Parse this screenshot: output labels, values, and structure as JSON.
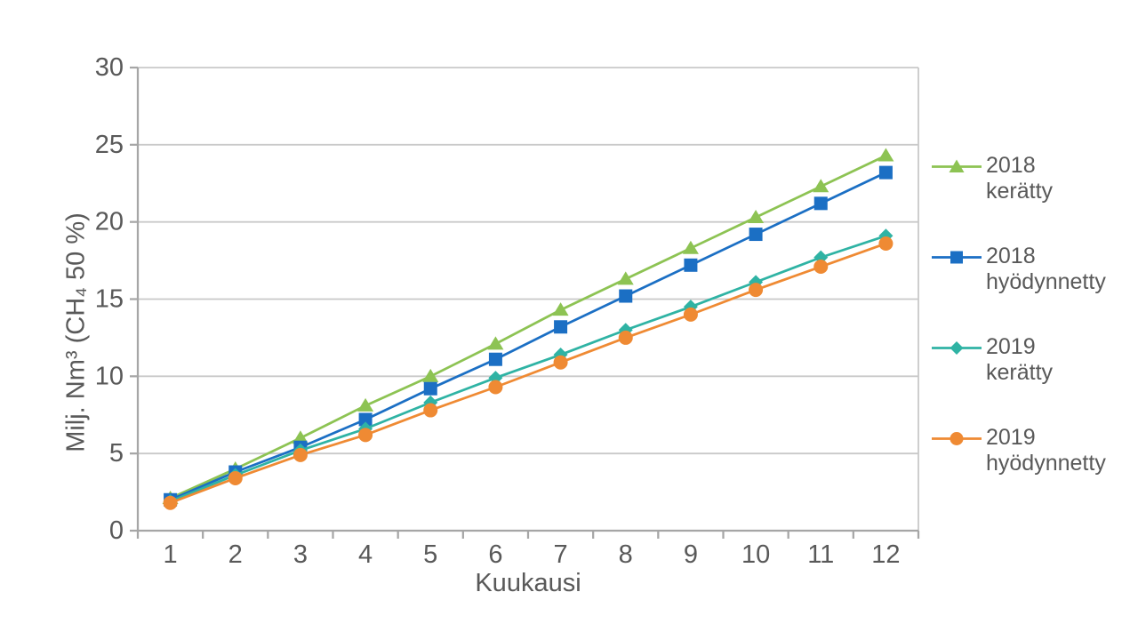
{
  "page": {
    "background": "#FFFFFF"
  },
  "chart_data": {
    "type": "line",
    "title": "",
    "xlabel": "Kuukausi",
    "ylabel": "Milj. Nm³ (CH₄ 50 %)",
    "categories": [
      "1",
      "2",
      "3",
      "4",
      "5",
      "6",
      "7",
      "8",
      "9",
      "10",
      "11",
      "12"
    ],
    "ylim": [
      0,
      30
    ],
    "ytick_interval": 5,
    "ytick_labels": [
      "0",
      "5",
      "10",
      "15",
      "20",
      "25",
      "30"
    ],
    "grid": "horizontal",
    "legend_position": "right",
    "axis_colors": {
      "text": "#595959",
      "gridline": "#C9C9C9",
      "axis_line": "#A6A6A6"
    },
    "series": [
      {
        "name": "2018 kerätty",
        "label_lines": [
          "2018",
          "kerätty"
        ],
        "marker": "triangle",
        "color": "#8DC353",
        "values": [
          2.1,
          4.0,
          6.0,
          8.1,
          10.0,
          12.1,
          14.3,
          16.3,
          18.3,
          20.3,
          22.3,
          24.3
        ]
      },
      {
        "name": "2018 hyödynnetty",
        "label_lines": [
          "2018",
          "hyödynnetty"
        ],
        "marker": "square",
        "color": "#1B6FC4",
        "values": [
          2.0,
          3.8,
          5.4,
          7.2,
          9.2,
          11.1,
          13.2,
          15.2,
          17.2,
          19.2,
          21.2,
          23.2
        ]
      },
      {
        "name": "2019 kerätty",
        "label_lines": [
          "2019",
          "kerätty"
        ],
        "marker": "diamond",
        "color": "#2FB3A4",
        "values": [
          1.9,
          3.6,
          5.2,
          6.6,
          8.3,
          9.9,
          11.4,
          13.0,
          14.5,
          16.1,
          17.7,
          19.1
        ]
      },
      {
        "name": "2019 hyödynnetty",
        "label_lines": [
          "2019",
          "hyödynnetty"
        ],
        "marker": "circle",
        "color": "#EF8A33",
        "values": [
          1.8,
          3.4,
          4.9,
          6.2,
          7.8,
          9.3,
          10.9,
          12.5,
          14.0,
          15.6,
          17.1,
          18.6
        ]
      }
    ]
  }
}
